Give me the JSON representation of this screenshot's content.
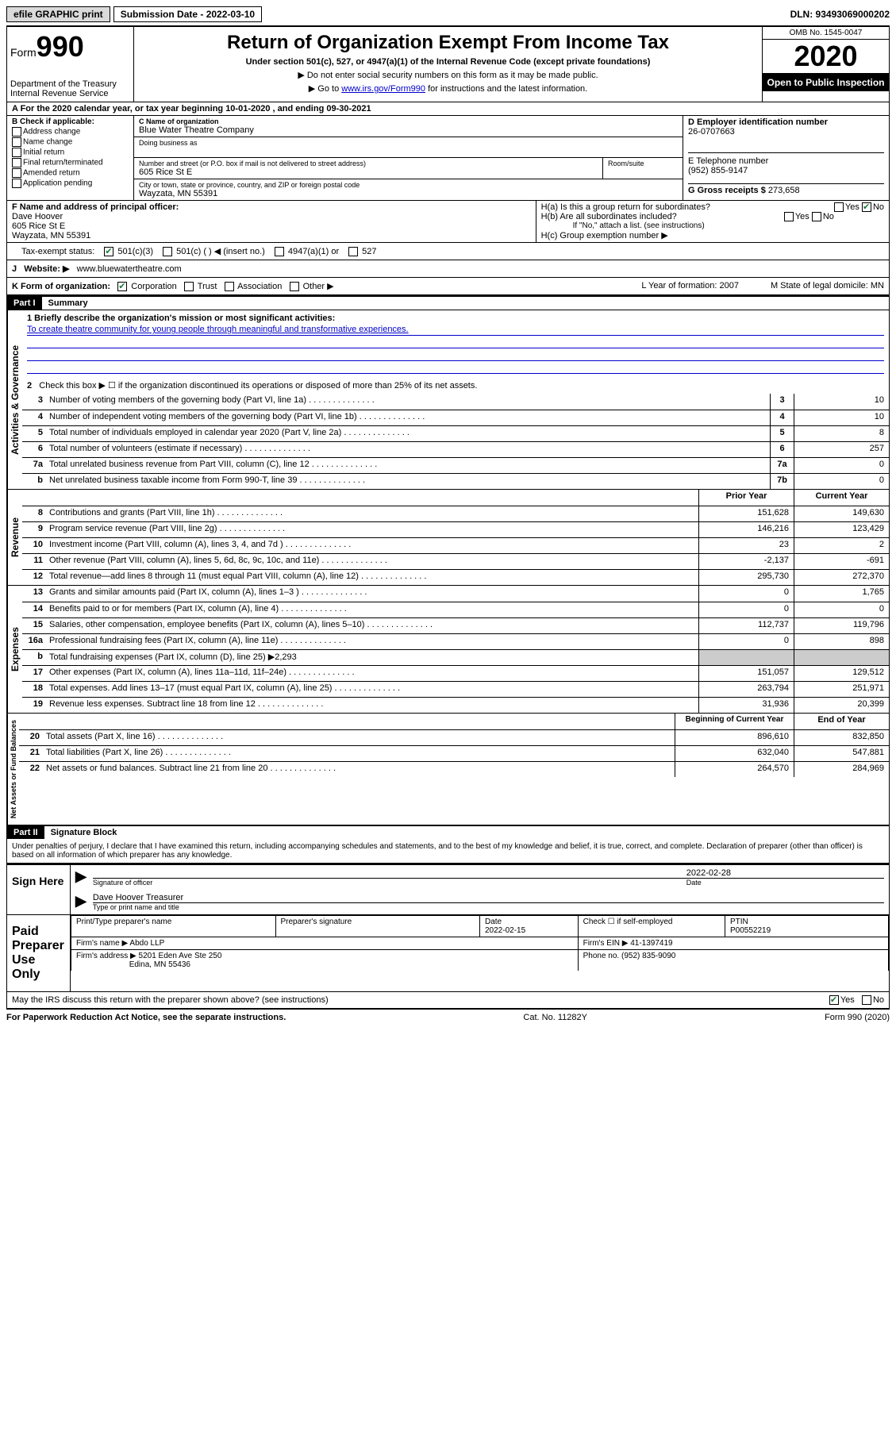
{
  "top": {
    "efile": "efile GRAPHIC print",
    "submission_label": "Submission Date - 2022-03-10",
    "dln": "DLN: 93493069000202"
  },
  "header": {
    "form_prefix": "Form",
    "form_num": "990",
    "title": "Return of Organization Exempt From Income Tax",
    "subtitle": "Under section 501(c), 527, or 4947(a)(1) of the Internal Revenue Code (except private foundations)",
    "instr1": "▶ Do not enter social security numbers on this form as it may be made public.",
    "instr2_prefix": "▶ Go to ",
    "instr2_link": "www.irs.gov/Form990",
    "instr2_suffix": " for instructions and the latest information.",
    "dept": "Department of the Treasury\nInternal Revenue Service",
    "omb": "OMB No. 1545-0047",
    "year": "2020",
    "inspection": "Open to Public Inspection"
  },
  "rowA": "A For the 2020 calendar year, or tax year beginning 10-01-2020    , and ending 09-30-2021",
  "boxB": {
    "label": "B Check if applicable:",
    "items": [
      "Address change",
      "Name change",
      "Initial return",
      "Final return/terminated",
      "Amended return",
      "Application pending"
    ]
  },
  "boxC": {
    "name_label": "C Name of organization",
    "name": "Blue Water Theatre Company",
    "dba_label": "Doing business as",
    "dba": "",
    "addr_label": "Number and street (or P.O. box if mail is not delivered to street address)",
    "room_label": "Room/suite",
    "addr": "605 Rice St E",
    "city_label": "City or town, state or province, country, and ZIP or foreign postal code",
    "city": "Wayzata, MN  55391"
  },
  "boxD": {
    "label": "D Employer identification number",
    "val": "26-0707663"
  },
  "boxE": {
    "label": "E Telephone number",
    "val": "(952) 855-9147"
  },
  "boxG": {
    "label": "G Gross receipts $",
    "val": "273,658"
  },
  "boxF": {
    "label": "F  Name and address of principal officer:",
    "name": "Dave Hoover",
    "addr1": "605 Rice St E",
    "addr2": "Wayzata, MN  55391"
  },
  "boxH": {
    "a": "H(a)  Is this a group return for subordinates?",
    "b": "H(b)  Are all subordinates included?",
    "b_note": "If \"No,\" attach a list. (see instructions)",
    "c": "H(c)  Group exemption number ▶"
  },
  "taxStatus": {
    "label": "Tax-exempt status:",
    "opts": [
      "501(c)(3)",
      "501(c) (  ) ◀ (insert no.)",
      "4947(a)(1) or",
      "527"
    ]
  },
  "rowJ": {
    "label": "J",
    "text": "Website: ▶",
    "val": "www.bluewatertheatre.com"
  },
  "rowK": {
    "label": "K Form of organization:",
    "opts": [
      "Corporation",
      "Trust",
      "Association",
      "Other ▶"
    ],
    "L": "L Year of formation: 2007",
    "M": "M State of legal domicile: MN"
  },
  "partI": {
    "hdr": "Part I",
    "title": "Summary",
    "q1": "1   Briefly describe the organization's mission or most significant activities:",
    "mission": "To create theatre community for young people through meaningful and transformative experiences.",
    "q2": "Check this box ▶ ☐  if the organization discontinued its operations or disposed of more than 25% of its net assets.",
    "lines_gov": [
      {
        "n": "3",
        "t": "Number of voting members of the governing body (Part VI, line 1a)",
        "box": "3",
        "v": "10"
      },
      {
        "n": "4",
        "t": "Number of independent voting members of the governing body (Part VI, line 1b)",
        "box": "4",
        "v": "10"
      },
      {
        "n": "5",
        "t": "Total number of individuals employed in calendar year 2020 (Part V, line 2a)",
        "box": "5",
        "v": "8"
      },
      {
        "n": "6",
        "t": "Total number of volunteers (estimate if necessary)",
        "box": "6",
        "v": "257"
      },
      {
        "n": "7a",
        "t": "Total unrelated business revenue from Part VIII, column (C), line 12",
        "box": "7a",
        "v": "0"
      },
      {
        "n": "b",
        "t": "Net unrelated business taxable income from Form 990-T, line 39",
        "box": "7b",
        "v": "0"
      }
    ],
    "col_prior": "Prior Year",
    "col_current": "Current Year",
    "lines_rev": [
      {
        "n": "8",
        "t": "Contributions and grants (Part VIII, line 1h)",
        "p": "151,628",
        "c": "149,630"
      },
      {
        "n": "9",
        "t": "Program service revenue (Part VIII, line 2g)",
        "p": "146,216",
        "c": "123,429"
      },
      {
        "n": "10",
        "t": "Investment income (Part VIII, column (A), lines 3, 4, and 7d )",
        "p": "23",
        "c": "2"
      },
      {
        "n": "11",
        "t": "Other revenue (Part VIII, column (A), lines 5, 6d, 8c, 9c, 10c, and 11e)",
        "p": "-2,137",
        "c": "-691"
      },
      {
        "n": "12",
        "t": "Total revenue—add lines 8 through 11 (must equal Part VIII, column (A), line 12)",
        "p": "295,730",
        "c": "272,370"
      }
    ],
    "lines_exp": [
      {
        "n": "13",
        "t": "Grants and similar amounts paid (Part IX, column (A), lines 1–3 )",
        "p": "0",
        "c": "1,765"
      },
      {
        "n": "14",
        "t": "Benefits paid to or for members (Part IX, column (A), line 4)",
        "p": "0",
        "c": "0"
      },
      {
        "n": "15",
        "t": "Salaries, other compensation, employee benefits (Part IX, column (A), lines 5–10)",
        "p": "112,737",
        "c": "119,796"
      },
      {
        "n": "16a",
        "t": "Professional fundraising fees (Part IX, column (A), line 11e)",
        "p": "0",
        "c": "898"
      },
      {
        "n": "b",
        "t": "Total fundraising expenses (Part IX, column (D), line 25) ▶2,293",
        "p": "",
        "c": ""
      },
      {
        "n": "17",
        "t": "Other expenses (Part IX, column (A), lines 11a–11d, 11f–24e)",
        "p": "151,057",
        "c": "129,512"
      },
      {
        "n": "18",
        "t": "Total expenses. Add lines 13–17 (must equal Part IX, column (A), line 25)",
        "p": "263,794",
        "c": "251,971"
      },
      {
        "n": "19",
        "t": "Revenue less expenses. Subtract line 18 from line 12",
        "p": "31,936",
        "c": "20,399"
      }
    ],
    "col_begin": "Beginning of Current Year",
    "col_end": "End of Year",
    "lines_net": [
      {
        "n": "20",
        "t": "Total assets (Part X, line 16)",
        "p": "896,610",
        "c": "832,850"
      },
      {
        "n": "21",
        "t": "Total liabilities (Part X, line 26)",
        "p": "632,040",
        "c": "547,881"
      },
      {
        "n": "22",
        "t": "Net assets or fund balances. Subtract line 21 from line 20",
        "p": "264,570",
        "c": "284,969"
      }
    ]
  },
  "vert": {
    "gov": "Activities & Governance",
    "rev": "Revenue",
    "exp": "Expenses",
    "net": "Net Assets or Fund Balances"
  },
  "partII": {
    "hdr": "Part II",
    "title": "Signature Block",
    "decl": "Under penalties of perjury, I declare that I have examined this return, including accompanying schedules and statements, and to the best of my knowledge and belief, it is true, correct, and complete. Declaration of preparer (other than officer) is based on all information of which preparer has any knowledge."
  },
  "sign": {
    "here": "Sign Here",
    "sig_officer": "Signature of officer",
    "date": "Date",
    "date_val": "2022-02-28",
    "name": "Dave Hoover  Treasurer",
    "name_label": "Type or print name and title"
  },
  "paid": {
    "label": "Paid Preparer Use Only",
    "col1": "Print/Type preparer's name",
    "col2": "Preparer's signature",
    "col3": "Date",
    "date_val": "2022-02-15",
    "col4": "Check ☐ if self-employed",
    "col5": "PTIN",
    "ptin": "P00552219",
    "firm_label": "Firm's name    ▶",
    "firm": "Abdo LLP",
    "ein_label": "Firm's EIN ▶",
    "ein": "41-1397419",
    "addr_label": "Firm's address ▶",
    "addr1": "5201 Eden Ave Ste 250",
    "addr2": "Edina, MN  55436",
    "phone_label": "Phone no.",
    "phone": "(952) 835-9090",
    "discuss": "May the IRS discuss this return with the preparer shown above? (see instructions)"
  },
  "footer": {
    "left": "For Paperwork Reduction Act Notice, see the separate instructions.",
    "mid": "Cat. No. 11282Y",
    "right": "Form 990 (2020)"
  }
}
